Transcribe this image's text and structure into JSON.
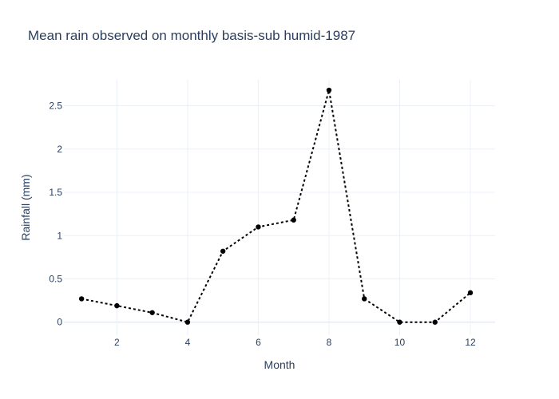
{
  "chart_data": {
    "type": "line",
    "title": "Mean rain observed on monthly basis-sub humid-1987",
    "xlabel": "Month",
    "ylabel": "Rainfall (mm)",
    "xlim": [
      0.5,
      12.7
    ],
    "ylim": [
      -0.15,
      2.8
    ],
    "xticks": [
      2,
      4,
      6,
      8,
      10,
      12
    ],
    "xtick_labels": [
      "2",
      "4",
      "6",
      "8",
      "10",
      "12"
    ],
    "yticks": [
      0,
      0.5,
      1,
      1.5,
      2,
      2.5
    ],
    "ytick_labels": [
      "0",
      "0.5",
      "1",
      "1.5",
      "2",
      "2.5"
    ],
    "grid": true,
    "legend": "none",
    "series": [
      {
        "x": [
          1,
          2,
          3,
          4,
          5,
          6,
          7,
          8,
          9,
          10,
          11,
          12
        ],
        "values": [
          0.27,
          0.19,
          0.11,
          0.0,
          0.82,
          1.1,
          1.18,
          2.68,
          0.27,
          0.0,
          0.0,
          0.34
        ],
        "color": "#000000",
        "line_style": "dotted",
        "marker": "circle"
      }
    ]
  }
}
